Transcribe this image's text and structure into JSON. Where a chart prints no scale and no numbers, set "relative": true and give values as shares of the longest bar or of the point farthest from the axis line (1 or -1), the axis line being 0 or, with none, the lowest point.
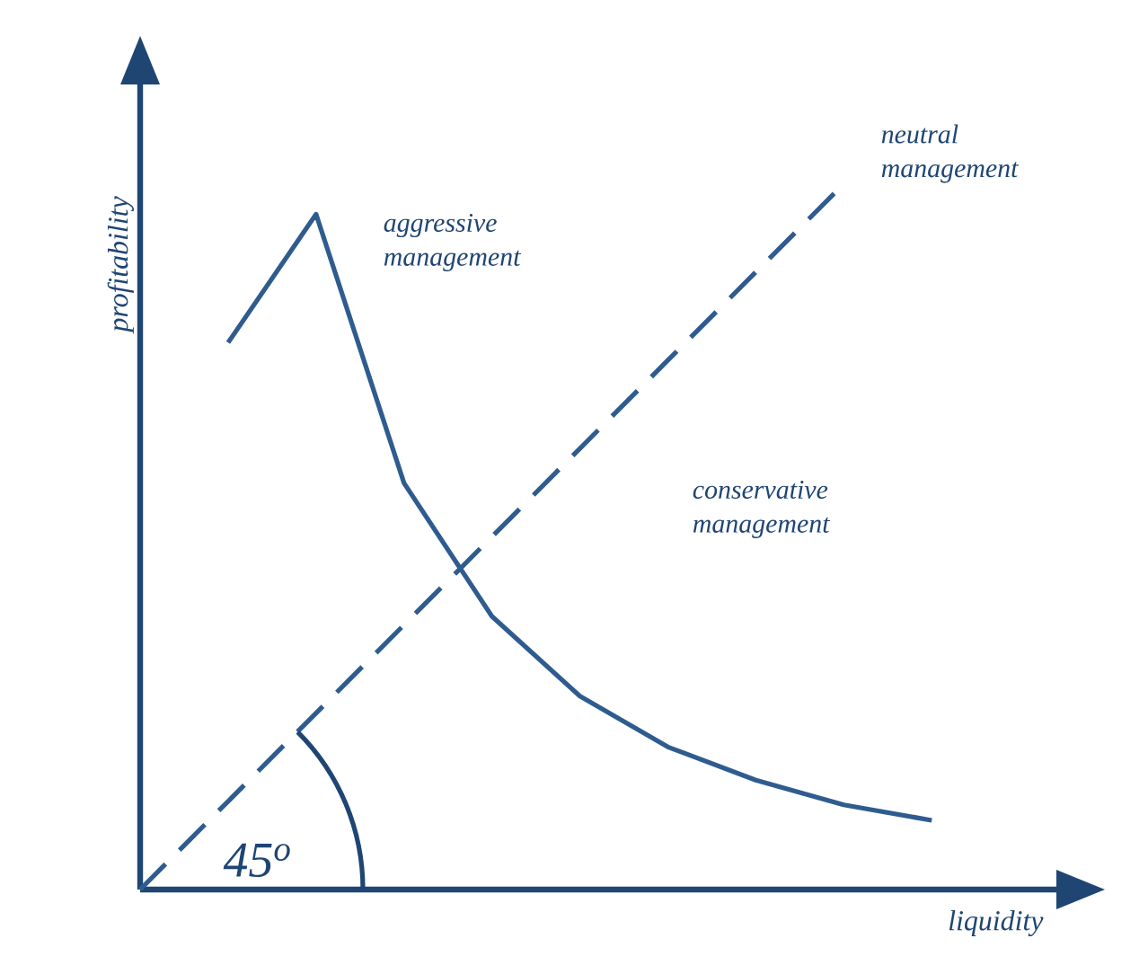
{
  "chart_data": {
    "type": "line",
    "relative": true,
    "xlabel": "liquidity",
    "ylabel": "profitability",
    "marker": "none",
    "categories": [
      null,
      null,
      null,
      null,
      null,
      null,
      null,
      null,
      null,
      null
    ],
    "series": [
      {
        "color": "#2f5c8f",
        "line_style": "solid",
        "values": [
          null,
          0.775,
          0.957,
          0.576,
          0.387,
          0.274,
          0.202,
          0.155,
          0.12,
          0.098
        ]
      },
      {
        "color": "#2f5c8f",
        "line_style": "dashed",
        "values": [
          0,
          0.125,
          0.25,
          0.375,
          0.5,
          0.625,
          0.75,
          0.875,
          1,
          null
        ]
      }
    ],
    "annotations": [
      "aggressive management",
      "conservative management",
      "neutral management",
      "45$^{o}$"
    ]
  }
}
